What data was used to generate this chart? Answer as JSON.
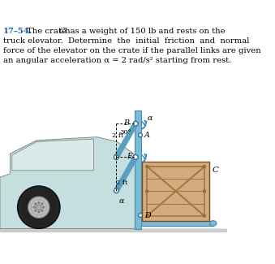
{
  "bg": "#ffffff",
  "truck_body_color": "#c5dede",
  "truck_edge": "#888888",
  "wheel_tire": "#1c1c1c",
  "wheel_hub_light": "#cccccc",
  "wheel_hub_dark": "#999999",
  "wheel_center": "#aaaaaa",
  "post_color": "#7abcd8",
  "post_edge": "#4a8aaa",
  "link_color": "#5a9ec0",
  "link_edge": "#3a7090",
  "platform_color": "#7abcd8",
  "platform_edge": "#4a8aaa",
  "crate_face": "#d4aa80",
  "crate_frame": "#a07840",
  "crate_edge": "#7a5020",
  "ground_color": "#bbbbbb",
  "label_color": "#000000",
  "blue_text": "#1a5fa8",
  "arrow_color": "#3a8ab0",
  "text_line1": "17–54.   The crate C has a weight of 150 lb and rests on the",
  "text_line2": "truck elevator.  Determine  the  initial  friction  and  normal",
  "text_line3": "force of the elevator on the crate if the parallel links are given",
  "text_line4": "an angular acceleration α = 2 rad/s² starting from rest."
}
